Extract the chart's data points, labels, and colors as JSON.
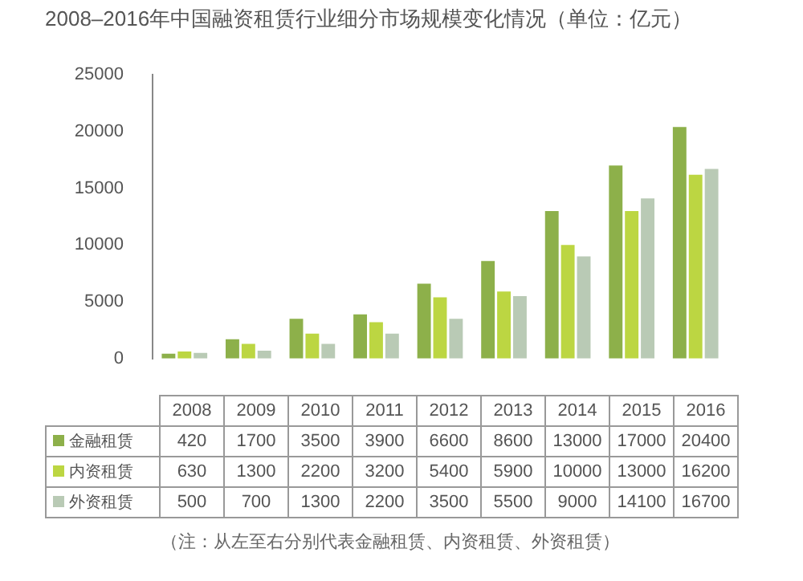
{
  "chart_data": {
    "type": "bar",
    "title": "2008–2016年中国融资租赁行业细分市场规模变化情况（单位：亿元）",
    "categories": [
      "2008",
      "2009",
      "2010",
      "2011",
      "2012",
      "2013",
      "2014",
      "2015",
      "2016"
    ],
    "series": [
      {
        "name": "金融租赁",
        "color": "#8db04a",
        "values": [
          420,
          1700,
          3500,
          3900,
          6600,
          8600,
          13000,
          17000,
          20400
        ]
      },
      {
        "name": "内资租赁",
        "color": "#bcd642",
        "values": [
          630,
          1300,
          2200,
          3200,
          5400,
          5900,
          10000,
          13000,
          16200
        ]
      },
      {
        "name": "外资租赁",
        "color": "#b9cab5",
        "values": [
          500,
          700,
          1300,
          2200,
          3500,
          5500,
          9000,
          14100,
          16700
        ]
      }
    ],
    "ylim": [
      0,
      25000
    ],
    "yticks": [
      0,
      5000,
      10000,
      15000,
      20000,
      25000
    ],
    "grid": false,
    "legend": "bottom left",
    "data_labels": true,
    "annotations": [
      "（注：从左至右分别代表金融租赁、内资租赁、外资租赁）"
    ]
  }
}
